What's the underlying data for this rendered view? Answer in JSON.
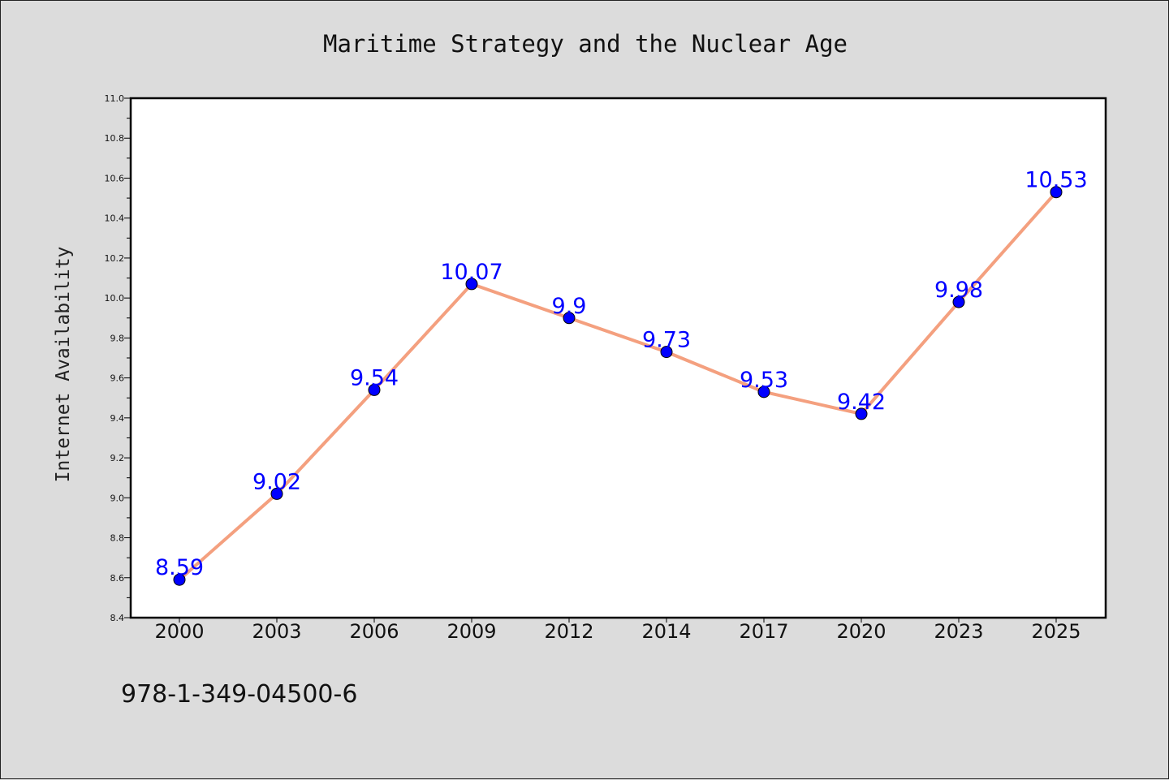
{
  "chart_data": {
    "type": "line",
    "title": "Maritime Strategy and the Nuclear Age",
    "xlabel": "",
    "ylabel": "Internet Availability",
    "categories": [
      "2000",
      "2003",
      "2006",
      "2009",
      "2012",
      "2014",
      "2017",
      "2020",
      "2023",
      "2025"
    ],
    "series": [
      {
        "values": [
          8.59,
          9.02,
          9.54,
          10.07,
          9.9,
          9.73,
          9.53,
          9.42,
          9.98,
          10.53
        ],
        "line_color": "#f4a07f",
        "marker_color": "#0000ff"
      }
    ],
    "ylim": [
      8.4,
      11.0
    ],
    "yticks": [
      "8.4",
      "8.6",
      "8.8",
      "9.0",
      "9.2",
      "9.4",
      "9.6",
      "9.8",
      "10.0",
      "10.2",
      "10.4",
      "10.6",
      "10.8",
      "11.0"
    ],
    "data_labels": [
      "8.59",
      "9.02",
      "9.54",
      "10.07",
      "9.9",
      "9.73",
      "9.53",
      "9.42",
      "9.98",
      "10.53"
    ],
    "grid": false,
    "legend": "none"
  },
  "footer_text": "978-1-349-04500-6"
}
